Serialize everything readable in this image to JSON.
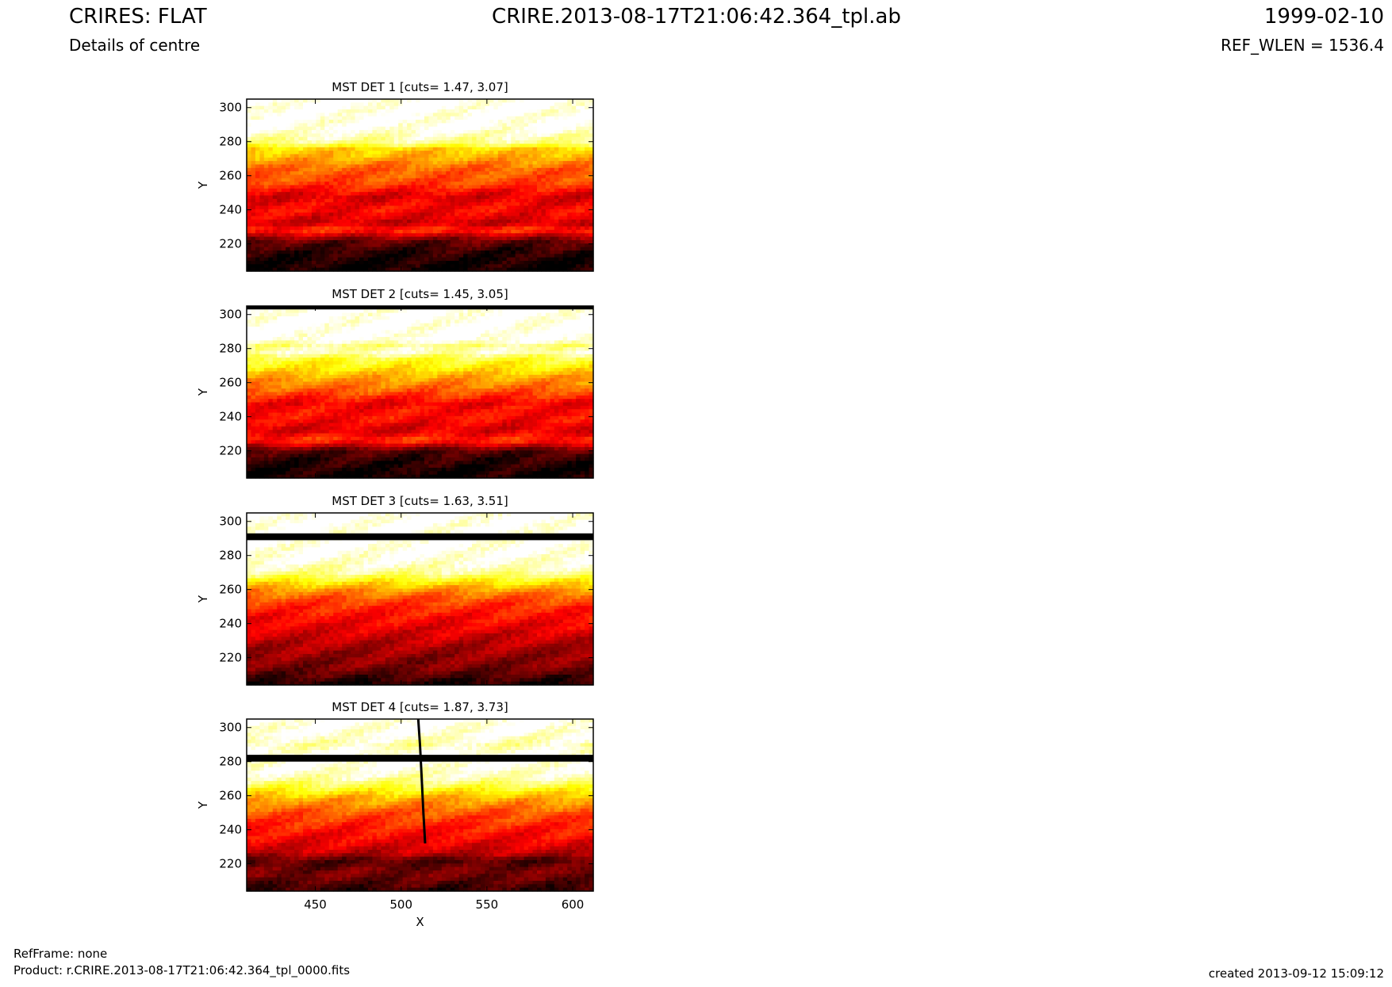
{
  "header": {
    "title_left": "CRIRES: FLAT",
    "subtitle_left": "Details of centre",
    "title_center": "CRIRE.2013-08-17T21:06:42.364_tpl.ab",
    "title_right": "1999-02-10",
    "subtitle_right": "REF_WLEN = 1536.4"
  },
  "footer": {
    "refframe": "RefFrame: none",
    "product": "Product: r.CRIRE.2013-08-17T21:06:42.364_tpl_0000.fits",
    "created": "created 2013-09-12 15:09:12"
  },
  "colors": {
    "colormap": "hot",
    "low": "#000000",
    "mid_low": "#c00000",
    "mid": "#ff4000",
    "mid_high": "#ffd000",
    "high": "#ffffff"
  },
  "chart_data": [
    {
      "type": "heatmap",
      "title": "MST DET 1 [cuts= 1.47, 3.07]",
      "xlabel": "",
      "ylabel": "Y",
      "xlim": [
        410,
        612
      ],
      "ylim": [
        204,
        305
      ],
      "xticks": [],
      "yticks": [
        220,
        240,
        260,
        280,
        300
      ],
      "cuts": [
        1.47,
        3.07
      ],
      "profile": [
        {
          "y": 205,
          "level": 0.02
        },
        {
          "y": 215,
          "level": 0.06
        },
        {
          "y": 222,
          "level": 0.15
        },
        {
          "y": 228,
          "level": 0.45
        },
        {
          "y": 232,
          "level": 0.3
        },
        {
          "y": 240,
          "level": 0.38
        },
        {
          "y": 248,
          "level": 0.32
        },
        {
          "y": 256,
          "level": 0.48
        },
        {
          "y": 264,
          "level": 0.52
        },
        {
          "y": 270,
          "level": 0.62
        },
        {
          "y": 276,
          "level": 0.7
        },
        {
          "y": 279,
          "level": 0.88
        },
        {
          "y": 283,
          "level": 0.93
        },
        {
          "y": 287,
          "level": 0.99
        },
        {
          "y": 305,
          "level": 1.0
        }
      ],
      "features": []
    },
    {
      "type": "heatmap",
      "title": "MST DET 2 [cuts= 1.45, 3.05]",
      "xlabel": "",
      "ylabel": "Y",
      "xlim": [
        410,
        612
      ],
      "ylim": [
        204,
        305
      ],
      "xticks": [],
      "yticks": [
        220,
        240,
        260,
        280,
        300
      ],
      "cuts": [
        1.45,
        3.05
      ],
      "profile": [
        {
          "y": 205,
          "level": 0.02
        },
        {
          "y": 214,
          "level": 0.06
        },
        {
          "y": 220,
          "level": 0.12
        },
        {
          "y": 226,
          "level": 0.45
        },
        {
          "y": 232,
          "level": 0.32
        },
        {
          "y": 240,
          "level": 0.4
        },
        {
          "y": 248,
          "level": 0.36
        },
        {
          "y": 256,
          "level": 0.52
        },
        {
          "y": 262,
          "level": 0.6
        },
        {
          "y": 268,
          "level": 0.72
        },
        {
          "y": 274,
          "level": 0.8
        },
        {
          "y": 278,
          "level": 0.95
        },
        {
          "y": 282,
          "level": 0.88
        },
        {
          "y": 285,
          "level": 1.0
        },
        {
          "y": 305,
          "level": 1.0
        }
      ],
      "features": [
        {
          "kind": "hband",
          "y0": 303,
          "y1": 305,
          "level": 0
        }
      ]
    },
    {
      "type": "heatmap",
      "title": "MST DET 3 [cuts= 1.63, 3.51]",
      "xlabel": "",
      "ylabel": "Y",
      "xlim": [
        410,
        612
      ],
      "ylim": [
        204,
        305
      ],
      "xticks": [],
      "yticks": [
        220,
        240,
        260,
        280,
        300
      ],
      "cuts": [
        1.63,
        3.51
      ],
      "profile": [
        {
          "y": 205,
          "level": 0.05
        },
        {
          "y": 214,
          "level": 0.18
        },
        {
          "y": 222,
          "level": 0.22
        },
        {
          "y": 230,
          "level": 0.28
        },
        {
          "y": 238,
          "level": 0.35
        },
        {
          "y": 246,
          "level": 0.4
        },
        {
          "y": 254,
          "level": 0.48
        },
        {
          "y": 260,
          "level": 0.6
        },
        {
          "y": 266,
          "level": 0.78
        },
        {
          "y": 270,
          "level": 0.9
        },
        {
          "y": 276,
          "level": 0.97
        },
        {
          "y": 282,
          "level": 0.99
        },
        {
          "y": 305,
          "level": 1.0
        }
      ],
      "features": [
        {
          "kind": "hband",
          "y0": 289,
          "y1": 293,
          "level": 0
        }
      ]
    },
    {
      "type": "heatmap",
      "title": "MST DET 4 [cuts= 1.87, 3.73]",
      "xlabel": "X",
      "ylabel": "Y",
      "xlim": [
        410,
        612
      ],
      "ylim": [
        204,
        305
      ],
      "xticks": [
        450,
        500,
        550,
        600
      ],
      "yticks": [
        220,
        240,
        260,
        280,
        300
      ],
      "cuts": [
        1.87,
        3.73
      ],
      "profile": [
        {
          "y": 205,
          "level": 0.08
        },
        {
          "y": 214,
          "level": 0.18
        },
        {
          "y": 222,
          "level": 0.12
        },
        {
          "y": 226,
          "level": 0.28
        },
        {
          "y": 234,
          "level": 0.36
        },
        {
          "y": 242,
          "level": 0.42
        },
        {
          "y": 250,
          "level": 0.5
        },
        {
          "y": 258,
          "level": 0.62
        },
        {
          "y": 264,
          "level": 0.78
        },
        {
          "y": 270,
          "level": 0.92
        },
        {
          "y": 276,
          "level": 0.98
        },
        {
          "y": 284,
          "level": 1.0
        },
        {
          "y": 290,
          "level": 0.92
        },
        {
          "y": 296,
          "level": 0.98
        },
        {
          "y": 305,
          "level": 1.0
        }
      ],
      "features": [
        {
          "kind": "hband",
          "y0": 280,
          "y1": 284,
          "level": 0
        },
        {
          "kind": "vtrace",
          "x": [
            510,
            511,
            512,
            513,
            514
          ],
          "y": [
            305,
            290,
            270,
            250,
            232
          ]
        }
      ]
    }
  ]
}
